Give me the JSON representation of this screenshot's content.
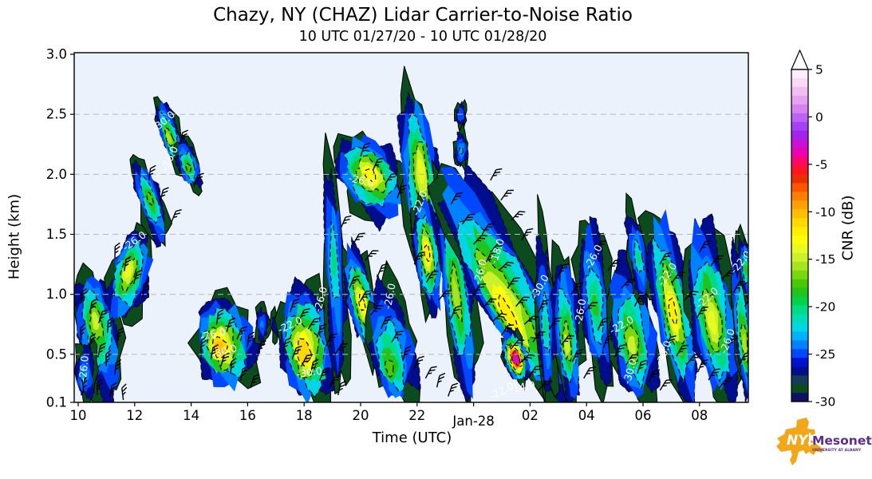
{
  "title": "Chazy, NY (CHAZ) Lidar Carrier-to-Noise Ratio",
  "subtitle": "10 UTC 01/27/20 - 10 UTC 01/28/20",
  "plot": {
    "bg": "#ecf2fb",
    "grid_color": "#b9b9b9",
    "spine_color": "#000000"
  },
  "axes": {
    "x_label": "Time (UTC)",
    "y_label": "Height (km)",
    "x_range_hours": [
      10,
      33.8
    ],
    "y_range_km": [
      0.1,
      3.0
    ],
    "gridlines_km": [
      0.5,
      1.0,
      1.5,
      2.0,
      2.5
    ],
    "x_ticks": [
      {
        "t": 10,
        "label": "10",
        "date": false
      },
      {
        "t": 12,
        "label": "12",
        "date": false
      },
      {
        "t": 14,
        "label": "14",
        "date": false
      },
      {
        "t": 16,
        "label": "16",
        "date": false
      },
      {
        "t": 18,
        "label": "18",
        "date": false
      },
      {
        "t": 20,
        "label": "20",
        "date": false
      },
      {
        "t": 22,
        "label": "22",
        "date": false
      },
      {
        "t": 24,
        "label": "Jan-28",
        "date": true
      },
      {
        "t": 26,
        "label": "02",
        "date": false
      },
      {
        "t": 28,
        "label": "04",
        "date": false
      },
      {
        "t": 30,
        "label": "06",
        "date": false
      },
      {
        "t": 32,
        "label": "08",
        "date": false
      }
    ],
    "y_ticks": [
      {
        "z": 3.0,
        "label": "3.0"
      },
      {
        "z": 2.5,
        "label": "2.5"
      },
      {
        "z": 2.0,
        "label": "2.0"
      },
      {
        "z": 1.5,
        "label": "1.5"
      },
      {
        "z": 1.0,
        "label": "1.0"
      },
      {
        "z": 0.5,
        "label": "0.5"
      },
      {
        "z": 0.1,
        "label": "0.1"
      }
    ]
  },
  "colorbar": {
    "label": "CNR (dB)",
    "range_db": [
      -30,
      5
    ],
    "extend": "max",
    "ticks": [
      {
        "v": 5,
        "label": "5"
      },
      {
        "v": 0,
        "label": "0"
      },
      {
        "v": -5,
        "label": "-5"
      },
      {
        "v": -10,
        "label": "-10"
      },
      {
        "v": -15,
        "label": "-15"
      },
      {
        "v": -20,
        "label": "-20"
      },
      {
        "v": -25,
        "label": "-25"
      },
      {
        "v": -30,
        "label": "-30"
      }
    ],
    "colors_top_to_bottom": [
      "#fdeefd",
      "#f8d9f8",
      "#f0bff2",
      "#e5a2f0",
      "#d483f1",
      "#bd63f3",
      "#a441f6",
      "#a126ea",
      "#c711d5",
      "#ee00b0",
      "#fb0868",
      "#ff1426",
      "#ea2f00",
      "#ff5400",
      "#ff7d00",
      "#ffa100",
      "#ffbf00",
      "#ffd900",
      "#ffee00",
      "#fefd05",
      "#e9f922",
      "#cbf02c",
      "#a6e51e",
      "#79d70e",
      "#48c807",
      "#20c41b",
      "#06d048",
      "#00d985",
      "#00ddb6",
      "#00d5e3",
      "#00b2fb",
      "#0081ff",
      "#0047ff",
      "#0010cf",
      "#000e8e",
      "#153a5b",
      "#0b4b1e",
      "#0d1266"
    ]
  },
  "logo": {
    "nys": "NYS",
    "mesonet": "Mesonet",
    "tagline": "UNIVERSITY AT ALBANY",
    "state_color": "#F2A71B",
    "text_color": "#5B2D8E"
  },
  "chart_data": {
    "type": "heatmap",
    "title": "Chazy, NY (CHAZ) Lidar Carrier-to-Noise Ratio",
    "x_axis": "Time (UTC), 10 UTC 01/27/20 through 10 UTC 01/28/20 (hours 10-34)",
    "y_axis": "Height (km), 0.1 to 3.0",
    "value_axis": "CNR (dB), -30 to 5, discrete filled contours with dashed line contours and wind barbs",
    "features": [
      {
        "t": [
          10.0,
          11.45
        ],
        "z": [
          0.1,
          1.18
        ],
        "peak_db": -15,
        "core": [
          10.6,
          0.8
        ],
        "lean": 0.15,
        "seed": 1
      },
      {
        "t": [
          9.95,
          10.65
        ],
        "z": [
          0.1,
          0.62
        ],
        "peak_db": -23,
        "core": [
          10.15,
          0.3
        ],
        "lean": 0.0,
        "seed": 2
      },
      {
        "t": [
          11.15,
          12.5
        ],
        "z": [
          0.75,
          1.52
        ],
        "peak_db": -14,
        "core": [
          11.75,
          1.2
        ],
        "lean": -0.2,
        "seed": 3
      },
      {
        "t": [
          12.15,
          12.95
        ],
        "z": [
          1.4,
          2.12
        ],
        "peak_db": -18,
        "core": [
          12.55,
          1.8
        ],
        "lean": 0.3,
        "seed": 4
      },
      {
        "t": [
          12.95,
          13.6
        ],
        "z": [
          2.05,
          2.62
        ],
        "peak_db": -16,
        "core": [
          13.2,
          2.3
        ],
        "lean": 0.3,
        "seed": 5
      },
      {
        "t": [
          13.55,
          14.25
        ],
        "z": [
          1.88,
          2.3
        ],
        "peak_db": -18,
        "core": [
          13.9,
          2.05
        ],
        "lean": 0.25,
        "seed": 6
      },
      {
        "t": [
          14.25,
          16.25
        ],
        "z": [
          0.22,
          0.97
        ],
        "peak_db": -10,
        "core": [
          14.95,
          0.55
        ],
        "lean": 0.1,
        "seed": 7
      },
      {
        "t": [
          16.3,
          16.75
        ],
        "z": [
          0.58,
          0.92
        ],
        "peak_db": -24,
        "core": [
          16.5,
          0.75
        ],
        "lean": 0.0,
        "seed": 8
      },
      {
        "t": [
          16.85,
          17.15
        ],
        "z": [
          0.62,
          0.88
        ],
        "peak_db": -26,
        "core": [
          17.0,
          0.75
        ],
        "lean": 0.0,
        "seed": 9
      },
      {
        "t": [
          17.2,
          19.05
        ],
        "z": [
          0.1,
          1.08
        ],
        "peak_db": -11,
        "core": [
          17.95,
          0.5
        ],
        "lean": 0.1,
        "seed": 10
      },
      {
        "t": [
          18.75,
          19.45
        ],
        "z": [
          0.1,
          2.12
        ],
        "peak_db": -21,
        "core": [
          19.05,
          1.3
        ],
        "lean": 0.05,
        "seed": 11
      },
      {
        "t": [
          19.25,
          21.45
        ],
        "z": [
          1.62,
          2.32
        ],
        "peak_db": -13,
        "core": [
          20.35,
          2.0
        ],
        "lean": 0.3,
        "seed": 12
      },
      {
        "t": [
          19.55,
          20.5
        ],
        "z": [
          0.5,
          1.4
        ],
        "peak_db": -13,
        "core": [
          20.05,
          0.92
        ],
        "lean": 0.2,
        "seed": 13
      },
      {
        "t": [
          20.35,
          21.95
        ],
        "z": [
          0.1,
          1.12
        ],
        "peak_db": -18,
        "core": [
          21.0,
          0.35
        ],
        "lean": 0.15,
        "seed": 14
      },
      {
        "t": [
          21.5,
          22.75
        ],
        "z": [
          1.1,
          2.68
        ],
        "peak_db": -14,
        "core": [
          22.15,
          2.05
        ],
        "lean": 0.1,
        "seed": 15
      },
      {
        "t": [
          21.95,
          22.8
        ],
        "z": [
          0.85,
          1.8
        ],
        "peak_db": -12,
        "core": [
          22.35,
          1.35
        ],
        "lean": 0.1,
        "seed": 16
      },
      {
        "t": [
          23.38,
          23.72
        ],
        "z": [
          2.38,
          2.6
        ],
        "peak_db": -25,
        "core": [
          23.55,
          2.5
        ],
        "lean": 0.0,
        "seed": 17
      },
      {
        "t": [
          23.35,
          23.78
        ],
        "z": [
          2.05,
          2.36
        ],
        "peak_db": -23,
        "core": [
          23.56,
          2.2
        ],
        "lean": 0.0,
        "seed": 18
      },
      {
        "t": [
          22.95,
          23.95
        ],
        "z": [
          0.1,
          1.95
        ],
        "peak_db": -16,
        "core": [
          23.35,
          1.0
        ],
        "lean": 0.12,
        "seed": 19
      },
      {
        "t": [
          23.95,
          26.35
        ],
        "z": [
          0.1,
          2.12
        ],
        "peak_db": -12,
        "core": [
          25.2,
          0.8
        ],
        "lean": 0.5,
        "seed": 20
      },
      {
        "t": [
          25.1,
          25.85
        ],
        "z": [
          0.28,
          0.68
        ],
        "peak_db": -3,
        "core": [
          25.5,
          0.46
        ],
        "lean": 0.2,
        "seed": 21
      },
      {
        "t": [
          26.25,
          26.85
        ],
        "z": [
          0.1,
          1.58
        ],
        "peak_db": -21,
        "core": [
          26.55,
          0.7
        ],
        "lean": 0.05,
        "seed": 22
      },
      {
        "t": [
          26.9,
          27.75
        ],
        "z": [
          0.1,
          1.38
        ],
        "peak_db": -15,
        "core": [
          27.3,
          0.55
        ],
        "lean": 0.08,
        "seed": 23
      },
      {
        "t": [
          27.8,
          28.85
        ],
        "z": [
          0.22,
          1.68
        ],
        "peak_db": -19,
        "core": [
          28.3,
          0.9
        ],
        "lean": 0.1,
        "seed": 24
      },
      {
        "t": [
          28.85,
          30.45
        ],
        "z": [
          0.1,
          1.32
        ],
        "peak_db": -15,
        "core": [
          29.6,
          0.55
        ],
        "lean": 0.12,
        "seed": 25
      },
      {
        "t": [
          29.5,
          30.15
        ],
        "z": [
          0.9,
          1.72
        ],
        "peak_db": -21,
        "core": [
          29.85,
          1.3
        ],
        "lean": 0.15,
        "seed": 26
      },
      {
        "t": [
          30.45,
          31.65
        ],
        "z": [
          0.1,
          1.72
        ],
        "peak_db": -12,
        "core": [
          31.05,
          0.85
        ],
        "lean": 0.18,
        "seed": 27
      },
      {
        "t": [
          31.7,
          33.25
        ],
        "z": [
          0.1,
          1.62
        ],
        "peak_db": -14,
        "core": [
          32.45,
          0.75
        ],
        "lean": 0.15,
        "seed": 28
      },
      {
        "t": [
          33.25,
          33.85
        ],
        "z": [
          0.1,
          1.4
        ],
        "peak_db": -16,
        "core": [
          33.6,
          0.55
        ],
        "lean": 0.1,
        "seed": 29
      },
      {
        "t": [
          33.45,
          33.85
        ],
        "z": [
          0.95,
          1.5
        ],
        "peak_db": -19,
        "core": [
          33.65,
          1.2
        ],
        "lean": 0.1,
        "seed": 30
      }
    ],
    "contour_labels": [
      {
        "text": "-26.0",
        "t": 10.32,
        "z": 0.38,
        "rot": -85
      },
      {
        "text": "-26.0",
        "t": 12.05,
        "z": 1.42,
        "rot": -35
      },
      {
        "text": "-30.0",
        "t": 13.1,
        "z": 2.42,
        "rot": -40
      },
      {
        "text": "-26.0",
        "t": 13.35,
        "z": 2.12,
        "rot": -65
      },
      {
        "text": "-26.0",
        "t": 14.8,
        "z": 0.64,
        "rot": -12
      },
      {
        "text": "-30.0",
        "t": 15.2,
        "z": 0.5,
        "rot": -15
      },
      {
        "text": "-22.0",
        "t": 17.55,
        "z": 0.72,
        "rot": -25
      },
      {
        "text": "-30.0",
        "t": 18.2,
        "z": 0.32,
        "rot": -8
      },
      {
        "text": "-26.0",
        "t": 18.7,
        "z": 0.95,
        "rot": -75
      },
      {
        "text": "-26.0",
        "t": 20.0,
        "z": 1.92,
        "rot": 12
      },
      {
        "text": "-26.0",
        "t": 21.15,
        "z": 0.98,
        "rot": -80
      },
      {
        "text": "-22.0",
        "t": 22.2,
        "z": 1.75,
        "rot": -70
      },
      {
        "text": "-26.0",
        "t": 24.35,
        "z": 1.18,
        "rot": -75
      },
      {
        "text": "-18.0",
        "t": 24.95,
        "z": 1.35,
        "rot": -72
      },
      {
        "text": "-22.0",
        "t": 25.05,
        "z": 0.17,
        "rot": -28
      },
      {
        "text": "-14.0",
        "t": 25.75,
        "z": 0.2,
        "rot": -10
      },
      {
        "text": "-30.0",
        "t": 26.45,
        "z": 1.05,
        "rot": -60
      },
      {
        "text": "-26.0",
        "t": 27.9,
        "z": 0.85,
        "rot": -80
      },
      {
        "text": "-26.0",
        "t": 28.35,
        "z": 1.3,
        "rot": -62
      },
      {
        "text": "-22.0",
        "t": 29.3,
        "z": 0.72,
        "rot": -30
      },
      {
        "text": "-30.0",
        "t": 29.65,
        "z": 0.35,
        "rot": -75
      },
      {
        "text": "-22.0",
        "t": 30.95,
        "z": 1.15,
        "rot": -55
      },
      {
        "text": "-30.0",
        "t": 30.85,
        "z": 0.5,
        "rot": -70
      },
      {
        "text": "-22.0",
        "t": 32.35,
        "z": 0.95,
        "rot": -42
      },
      {
        "text": "-26.0",
        "t": 33.1,
        "z": 0.6,
        "rot": -70
      },
      {
        "text": "-22.0",
        "t": 33.55,
        "z": 1.25,
        "rot": -50
      }
    ],
    "wind_barb_chains": [
      {
        "from": [
          10.1,
          0.92
        ],
        "to": [
          11.35,
          0.6
        ],
        "n": 5,
        "rot": 10
      },
      {
        "from": [
          10.1,
          0.62
        ],
        "to": [
          11.3,
          0.33
        ],
        "n": 5,
        "rot": 5
      },
      {
        "from": [
          10.2,
          0.18
        ],
        "to": [
          11.6,
          0.12
        ],
        "n": 4,
        "rot": 0
      },
      {
        "from": [
          11.3,
          1.3
        ],
        "to": [
          12.3,
          0.98
        ],
        "n": 4,
        "rot": 8
      },
      {
        "from": [
          12.5,
          1.95
        ],
        "to": [
          13.3,
          1.6
        ],
        "n": 3,
        "rot": 15
      },
      {
        "from": [
          13.6,
          2.25
        ],
        "to": [
          14.1,
          1.9
        ],
        "n": 2,
        "rot": 20
      },
      {
        "from": [
          14.35,
          0.52
        ],
        "to": [
          16.1,
          0.22
        ],
        "n": 6,
        "rot": 10
      },
      {
        "from": [
          14.9,
          0.75
        ],
        "to": [
          16.35,
          0.5
        ],
        "n": 5,
        "rot": 15
      },
      {
        "from": [
          17.25,
          0.52
        ],
        "to": [
          19.2,
          0.16
        ],
        "n": 7,
        "rot": 20
      },
      {
        "from": [
          17.5,
          0.85
        ],
        "to": [
          19.1,
          0.5
        ],
        "n": 6,
        "rot": 25
      },
      {
        "from": [
          19.3,
          1.55
        ],
        "to": [
          20.6,
          1.15
        ],
        "n": 4,
        "rot": 30
      },
      {
        "from": [
          19.6,
          1.05
        ],
        "to": [
          21.1,
          0.6
        ],
        "n": 5,
        "rot": 30
      },
      {
        "from": [
          20.0,
          2.15
        ],
        "to": [
          21.3,
          1.8
        ],
        "n": 4,
        "rot": 25
      },
      {
        "from": [
          21.5,
          0.45
        ],
        "to": [
          23.1,
          0.15
        ],
        "n": 5,
        "rot": 20
      },
      {
        "from": [
          21.9,
          1.25
        ],
        "to": [
          23.2,
          0.8
        ],
        "n": 4,
        "rot": 30
      },
      {
        "from": [
          23.2,
          1.75
        ],
        "to": [
          24.4,
          1.25
        ],
        "n": 4,
        "rot": 35
      },
      {
        "from": [
          24.0,
          1.0
        ],
        "to": [
          26.3,
          0.2
        ],
        "n": 8,
        "rot": 40
      },
      {
        "from": [
          24.3,
          1.5
        ],
        "to": [
          26.1,
          0.6
        ],
        "n": 7,
        "rot": 40
      },
      {
        "from": [
          24.6,
          1.95
        ],
        "to": [
          25.7,
          1.45
        ],
        "n": 4,
        "rot": 35
      },
      {
        "from": [
          26.3,
          0.85
        ],
        "to": [
          27.9,
          0.3
        ],
        "n": 5,
        "rot": 30
      },
      {
        "from": [
          27.0,
          1.15
        ],
        "to": [
          28.4,
          0.7
        ],
        "n": 4,
        "rot": 30
      },
      {
        "from": [
          28.3,
          1.35
        ],
        "to": [
          29.7,
          0.9
        ],
        "n": 4,
        "rot": 35
      },
      {
        "from": [
          28.6,
          0.55
        ],
        "to": [
          30.6,
          0.2
        ],
        "n": 6,
        "rot": 25
      },
      {
        "from": [
          30.6,
          1.25
        ],
        "to": [
          31.9,
          0.8
        ],
        "n": 4,
        "rot": 35
      },
      {
        "from": [
          30.8,
          0.55
        ],
        "to": [
          32.7,
          0.22
        ],
        "n": 6,
        "rot": 30
      },
      {
        "from": [
          32.0,
          1.35
        ],
        "to": [
          33.6,
          0.9
        ],
        "n": 5,
        "rot": 35
      },
      {
        "from": [
          33.0,
          0.55
        ],
        "to": [
          33.85,
          0.28
        ],
        "n": 3,
        "rot": 25
      }
    ]
  }
}
